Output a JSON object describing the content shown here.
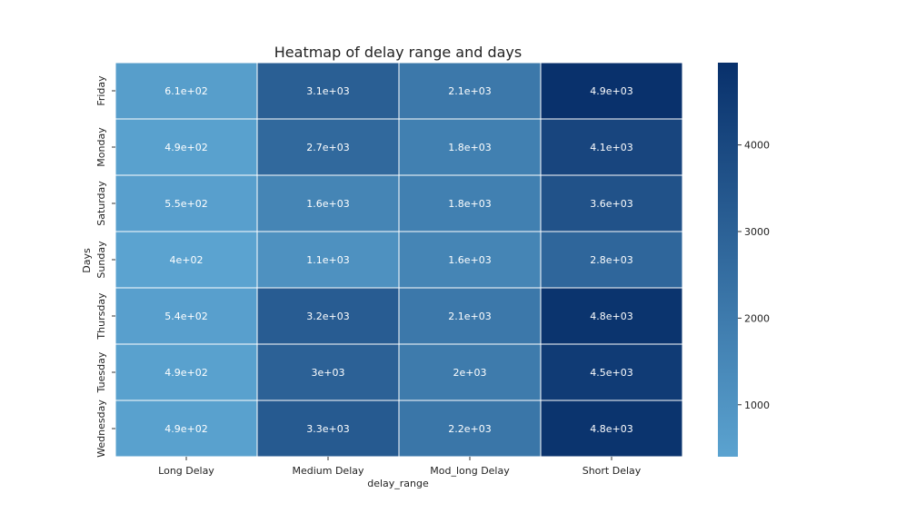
{
  "chart_data": {
    "type": "heatmap",
    "title": "Heatmap of delay range and days",
    "xlabel": "delay_range",
    "ylabel": "Days",
    "x_categories": [
      "Long Delay",
      "Medium Delay",
      "Mod_long Delay",
      "Short Delay"
    ],
    "y_categories": [
      "Friday",
      "Monday",
      "Saturday",
      "Sunday",
      "Thursday",
      "Tuesday",
      "Wednesday"
    ],
    "values": [
      [
        610,
        3100,
        2100,
        4900
      ],
      [
        490,
        2700,
        1800,
        4100
      ],
      [
        550,
        1600,
        1800,
        3600
      ],
      [
        400,
        1100,
        1600,
        2800
      ],
      [
        540,
        3200,
        2100,
        4800
      ],
      [
        490,
        3000,
        2000,
        4500
      ],
      [
        490,
        3300,
        2200,
        4800
      ]
    ],
    "annotations": [
      [
        "6.1e+02",
        "3.1e+03",
        "2.1e+03",
        "4.9e+03"
      ],
      [
        "4.9e+02",
        "2.7e+03",
        "1.8e+03",
        "4.1e+03"
      ],
      [
        "5.5e+02",
        "1.6e+03",
        "1.8e+03",
        "3.6e+03"
      ],
      [
        "4e+02",
        "1.1e+03",
        "1.6e+03",
        "2.8e+03"
      ],
      [
        "5.4e+02",
        "3.2e+03",
        "2.1e+03",
        "4.8e+03"
      ],
      [
        "4.9e+02",
        "3e+03",
        "2e+03",
        "4.5e+03"
      ],
      [
        "4.9e+02",
        "3.3e+03",
        "2.2e+03",
        "4.8e+03"
      ]
    ],
    "colorbar": {
      "range": [
        400,
        4950
      ],
      "ticks": [
        1000,
        2000,
        3000,
        4000
      ],
      "tick_labels": [
        "1000",
        "2000",
        "3000",
        "4000"
      ]
    },
    "colormap": [
      "#5ba3d0",
      "#08306b"
    ],
    "grid": false
  }
}
